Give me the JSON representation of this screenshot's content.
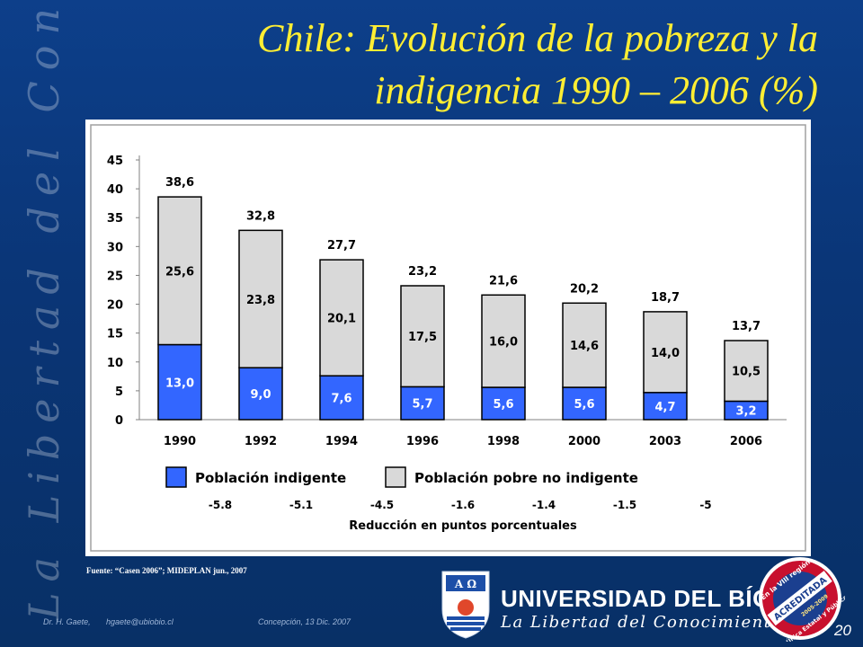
{
  "slide": {
    "title_line1": "Chile: Evolución de la pobreza y la",
    "title_line2": "indigencia 1990 – 2006 (%)",
    "watermark": "La Libertad del Conocimiento",
    "source": "Fuente: “Casen 2006”; MIDEPLAN jun., 2007",
    "footer_author": "Dr. H. Gaete,",
    "footer_email": "hgaete@ubiobio.cl",
    "footer_place_date": "Concepción, 13 Dic. 2007",
    "page_number": "20"
  },
  "logo": {
    "name": "UNIVERSIDAD DEL BÍO-BÍO",
    "motto": "La Libertad del Conocimiento",
    "crest_text": "A Ω",
    "badge_lines": [
      "En la VIII región",
      "ACREDITADA",
      "2005-2009",
      "Única Estatal y Pública"
    ]
  },
  "colors": {
    "indigent": "#3366ff",
    "poor_non_indigent": "#d9d9d9",
    "title": "#ffee33",
    "background": "#0a3576"
  },
  "chart_data": {
    "type": "bar",
    "stacked": true,
    "categories": [
      "1990",
      "1992",
      "1994",
      "1996",
      "1998",
      "2000",
      "2003",
      "2006"
    ],
    "series": [
      {
        "name": "Población indigente",
        "values": [
          13.0,
          9.0,
          7.6,
          5.7,
          5.6,
          5.6,
          4.7,
          3.2
        ],
        "labels": [
          "13,0",
          "9,0",
          "7,6",
          "5,7",
          "5,6",
          "5,6",
          "4,7",
          "3,2"
        ]
      },
      {
        "name": "Población pobre no indigente",
        "values": [
          25.6,
          23.8,
          20.1,
          17.5,
          16.0,
          14.6,
          14.0,
          10.5
        ],
        "labels": [
          "25,6",
          "23,8",
          "20,1",
          "17,5",
          "16,0",
          "14,6",
          "14,0",
          "10,5"
        ]
      }
    ],
    "totals": [
      38.6,
      32.8,
      27.7,
      23.2,
      21.6,
      20.2,
      18.7,
      13.7
    ],
    "total_labels": [
      "38,6",
      "32,8",
      "27,7",
      "23,2",
      "21,6",
      "20,2",
      "18,7",
      "13,7"
    ],
    "ylim": [
      0,
      45
    ],
    "yticks": [
      "0",
      "5",
      "10",
      "15",
      "20",
      "25",
      "30",
      "35",
      "40",
      "45"
    ],
    "legend_position": "bottom",
    "reductions": [
      "-5.8",
      "-5.1",
      "-4.5",
      "-1.6",
      "-1.4",
      "-1.5",
      "-5"
    ],
    "reductions_label": "Reducción en puntos porcentuales"
  }
}
